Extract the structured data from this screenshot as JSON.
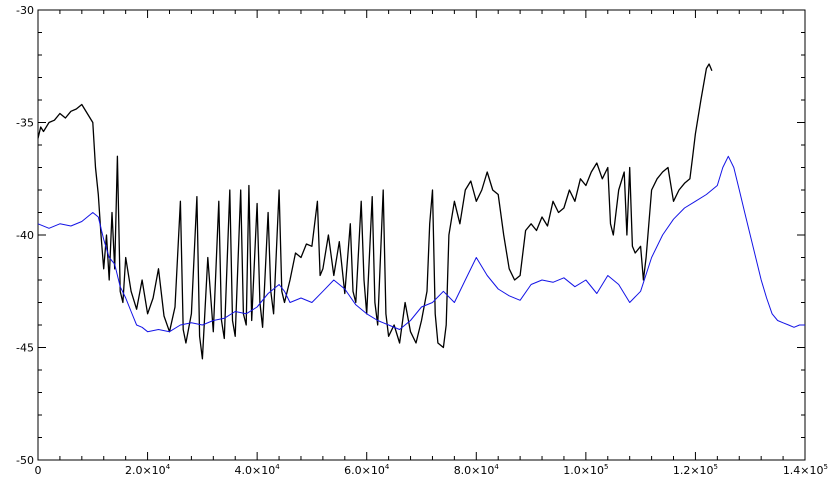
{
  "chart_data": {
    "type": "line",
    "title": "",
    "xlabel": "",
    "ylabel": "",
    "xlim": [
      0,
      140000
    ],
    "ylim": [
      -50,
      -30
    ],
    "grid": false,
    "legend": "none",
    "x_ticks": [
      {
        "value": 0,
        "mantissa": "0",
        "exponent": ""
      },
      {
        "value": 20000,
        "mantissa": "2.0×10",
        "exponent": "4"
      },
      {
        "value": 40000,
        "mantissa": "4.0×10",
        "exponent": "4"
      },
      {
        "value": 60000,
        "mantissa": "6.0×10",
        "exponent": "4"
      },
      {
        "value": 80000,
        "mantissa": "8.0×10",
        "exponent": "4"
      },
      {
        "value": 100000,
        "mantissa": "1.0×10",
        "exponent": "5"
      },
      {
        "value": 120000,
        "mantissa": "1.2×10",
        "exponent": "5"
      },
      {
        "value": 140000,
        "mantissa": "1.4×10",
        "exponent": "5"
      }
    ],
    "y_ticks": [
      {
        "value": -30,
        "label": "-30"
      },
      {
        "value": -35,
        "label": "-35"
      },
      {
        "value": -40,
        "label": "-40"
      },
      {
        "value": -45,
        "label": "-45"
      },
      {
        "value": -50,
        "label": "-50"
      }
    ],
    "series": [
      {
        "color": "#000000",
        "points": [
          [
            0,
            -35.7
          ],
          [
            500,
            -35.2
          ],
          [
            1000,
            -35.4
          ],
          [
            2000,
            -35.0
          ],
          [
            3000,
            -34.9
          ],
          [
            4000,
            -34.6
          ],
          [
            5000,
            -34.8
          ],
          [
            6000,
            -34.5
          ],
          [
            7000,
            -34.4
          ],
          [
            8000,
            -34.2
          ],
          [
            9000,
            -34.6
          ],
          [
            10000,
            -35.0
          ],
          [
            10500,
            -37.0
          ],
          [
            11000,
            -38.2
          ],
          [
            11500,
            -40.0
          ],
          [
            12000,
            -41.5
          ],
          [
            12500,
            -40.0
          ],
          [
            13000,
            -42.0
          ],
          [
            13500,
            -39.0
          ],
          [
            14000,
            -41.5
          ],
          [
            14500,
            -36.5
          ],
          [
            15000,
            -42.5
          ],
          [
            15500,
            -43.0
          ],
          [
            16000,
            -41.0
          ],
          [
            17000,
            -42.5
          ],
          [
            18000,
            -43.3
          ],
          [
            19000,
            -42.0
          ],
          [
            20000,
            -43.5
          ],
          [
            21000,
            -42.8
          ],
          [
            22000,
            -41.5
          ],
          [
            23000,
            -43.6
          ],
          [
            24000,
            -44.3
          ],
          [
            25000,
            -43.2
          ],
          [
            26000,
            -38.5
          ],
          [
            26500,
            -44.2
          ],
          [
            27000,
            -44.8
          ],
          [
            28000,
            -43.5
          ],
          [
            29000,
            -38.3
          ],
          [
            29500,
            -44.5
          ],
          [
            30000,
            -45.5
          ],
          [
            31000,
            -41.0
          ],
          [
            32000,
            -44.3
          ],
          [
            33000,
            -38.5
          ],
          [
            33500,
            -43.8
          ],
          [
            34000,
            -44.6
          ],
          [
            35000,
            -38.0
          ],
          [
            35500,
            -43.8
          ],
          [
            36000,
            -44.5
          ],
          [
            37000,
            -38.0
          ],
          [
            37500,
            -43.5
          ],
          [
            38000,
            -44.0
          ],
          [
            38500,
            -37.8
          ],
          [
            39000,
            -43.8
          ],
          [
            40000,
            -38.6
          ],
          [
            40500,
            -43.0
          ],
          [
            41000,
            -44.1
          ],
          [
            42000,
            -39.0
          ],
          [
            42500,
            -42.5
          ],
          [
            43000,
            -43.5
          ],
          [
            44000,
            -38.0
          ],
          [
            44500,
            -42.5
          ],
          [
            45000,
            -43.0
          ],
          [
            46000,
            -42.0
          ],
          [
            47000,
            -40.8
          ],
          [
            48000,
            -41.0
          ],
          [
            49000,
            -40.4
          ],
          [
            50000,
            -40.5
          ],
          [
            51000,
            -38.5
          ],
          [
            51500,
            -41.8
          ],
          [
            52000,
            -41.5
          ],
          [
            53000,
            -40.0
          ],
          [
            54000,
            -41.8
          ],
          [
            55000,
            -40.3
          ],
          [
            56000,
            -42.6
          ],
          [
            57000,
            -39.5
          ],
          [
            57500,
            -42.5
          ],
          [
            58000,
            -43.0
          ],
          [
            59000,
            -38.5
          ],
          [
            59500,
            -42.0
          ],
          [
            60000,
            -43.5
          ],
          [
            61000,
            -38.3
          ],
          [
            61500,
            -43.0
          ],
          [
            62000,
            -44.0
          ],
          [
            63000,
            -38.0
          ],
          [
            63500,
            -43.5
          ],
          [
            64000,
            -44.5
          ],
          [
            65000,
            -44.0
          ],
          [
            66000,
            -44.8
          ],
          [
            67000,
            -43.0
          ],
          [
            68000,
            -44.3
          ],
          [
            69000,
            -44.8
          ],
          [
            70000,
            -43.8
          ],
          [
            71000,
            -42.5
          ],
          [
            71500,
            -39.5
          ],
          [
            72000,
            -38.0
          ],
          [
            72500,
            -43.5
          ],
          [
            73000,
            -44.8
          ],
          [
            74000,
            -45.0
          ],
          [
            74500,
            -44.0
          ],
          [
            75000,
            -40.0
          ],
          [
            76000,
            -38.5
          ],
          [
            77000,
            -39.5
          ],
          [
            78000,
            -38.0
          ],
          [
            79000,
            -37.6
          ],
          [
            80000,
            -38.5
          ],
          [
            81000,
            -38.0
          ],
          [
            82000,
            -37.2
          ],
          [
            83000,
            -38.0
          ],
          [
            84000,
            -38.2
          ],
          [
            85000,
            -40.0
          ],
          [
            86000,
            -41.5
          ],
          [
            87000,
            -42.0
          ],
          [
            88000,
            -41.8
          ],
          [
            89000,
            -39.8
          ],
          [
            90000,
            -39.5
          ],
          [
            91000,
            -39.8
          ],
          [
            92000,
            -39.2
          ],
          [
            93000,
            -39.6
          ],
          [
            94000,
            -38.5
          ],
          [
            95000,
            -39.0
          ],
          [
            96000,
            -38.8
          ],
          [
            97000,
            -38.0
          ],
          [
            98000,
            -38.5
          ],
          [
            99000,
            -37.5
          ],
          [
            100000,
            -37.8
          ],
          [
            101000,
            -37.2
          ],
          [
            102000,
            -36.8
          ],
          [
            103000,
            -37.5
          ],
          [
            104000,
            -37.0
          ],
          [
            104500,
            -39.5
          ],
          [
            105000,
            -40.0
          ],
          [
            106000,
            -38.0
          ],
          [
            107000,
            -37.2
          ],
          [
            107500,
            -40.0
          ],
          [
            108000,
            -37.0
          ],
          [
            108500,
            -40.5
          ],
          [
            109000,
            -40.8
          ],
          [
            110000,
            -40.5
          ],
          [
            110500,
            -42.0
          ],
          [
            111000,
            -41.0
          ],
          [
            112000,
            -38.0
          ],
          [
            113000,
            -37.5
          ],
          [
            114000,
            -37.2
          ],
          [
            115000,
            -37.0
          ],
          [
            116000,
            -38.5
          ],
          [
            117000,
            -38.0
          ],
          [
            118000,
            -37.7
          ],
          [
            119000,
            -37.5
          ],
          [
            119500,
            -36.5
          ],
          [
            120000,
            -35.5
          ],
          [
            121000,
            -34.0
          ],
          [
            122000,
            -32.6
          ],
          [
            122500,
            -32.4
          ],
          [
            123000,
            -32.7
          ]
        ]
      },
      {
        "color": "#1414e6",
        "points": [
          [
            0,
            -39.5
          ],
          [
            2000,
            -39.7
          ],
          [
            4000,
            -39.5
          ],
          [
            6000,
            -39.6
          ],
          [
            8000,
            -39.4
          ],
          [
            10000,
            -39.0
          ],
          [
            11000,
            -39.2
          ],
          [
            12000,
            -40.2
          ],
          [
            13000,
            -41.0
          ],
          [
            14000,
            -41.3
          ],
          [
            15000,
            -42.3
          ],
          [
            16000,
            -42.8
          ],
          [
            17000,
            -43.4
          ],
          [
            18000,
            -44.0
          ],
          [
            19000,
            -44.1
          ],
          [
            20000,
            -44.3
          ],
          [
            22000,
            -44.2
          ],
          [
            24000,
            -44.3
          ],
          [
            26000,
            -44.0
          ],
          [
            28000,
            -43.9
          ],
          [
            30000,
            -44.0
          ],
          [
            32000,
            -43.8
          ],
          [
            34000,
            -43.7
          ],
          [
            36000,
            -43.4
          ],
          [
            38000,
            -43.5
          ],
          [
            40000,
            -43.2
          ],
          [
            42000,
            -42.6
          ],
          [
            44000,
            -42.2
          ],
          [
            45000,
            -42.5
          ],
          [
            46000,
            -43.0
          ],
          [
            48000,
            -42.8
          ],
          [
            50000,
            -43.0
          ],
          [
            52000,
            -42.5
          ],
          [
            54000,
            -42.0
          ],
          [
            56000,
            -42.4
          ],
          [
            58000,
            -43.1
          ],
          [
            60000,
            -43.5
          ],
          [
            62000,
            -43.8
          ],
          [
            64000,
            -44.0
          ],
          [
            66000,
            -44.2
          ],
          [
            68000,
            -43.8
          ],
          [
            70000,
            -43.2
          ],
          [
            72000,
            -43.0
          ],
          [
            74000,
            -42.5
          ],
          [
            76000,
            -43.0
          ],
          [
            78000,
            -42.0
          ],
          [
            80000,
            -41.0
          ],
          [
            82000,
            -41.8
          ],
          [
            84000,
            -42.4
          ],
          [
            86000,
            -42.7
          ],
          [
            88000,
            -42.9
          ],
          [
            90000,
            -42.2
          ],
          [
            92000,
            -42.0
          ],
          [
            94000,
            -42.1
          ],
          [
            96000,
            -41.9
          ],
          [
            98000,
            -42.3
          ],
          [
            100000,
            -42.0
          ],
          [
            102000,
            -42.6
          ],
          [
            104000,
            -41.8
          ],
          [
            106000,
            -42.2
          ],
          [
            108000,
            -43.0
          ],
          [
            110000,
            -42.5
          ],
          [
            112000,
            -41.0
          ],
          [
            114000,
            -40.0
          ],
          [
            116000,
            -39.3
          ],
          [
            118000,
            -38.8
          ],
          [
            120000,
            -38.5
          ],
          [
            122000,
            -38.2
          ],
          [
            124000,
            -37.8
          ],
          [
            125000,
            -37.0
          ],
          [
            126000,
            -36.5
          ],
          [
            127000,
            -37.0
          ],
          [
            128000,
            -38.0
          ],
          [
            129000,
            -39.0
          ],
          [
            130000,
            -40.0
          ],
          [
            131000,
            -41.0
          ],
          [
            132000,
            -42.0
          ],
          [
            133000,
            -42.8
          ],
          [
            134000,
            -43.5
          ],
          [
            135000,
            -43.8
          ],
          [
            136000,
            -43.9
          ],
          [
            137000,
            -44.0
          ],
          [
            138000,
            -44.1
          ],
          [
            139000,
            -44.0
          ],
          [
            140000,
            -44.0
          ]
        ]
      }
    ]
  }
}
